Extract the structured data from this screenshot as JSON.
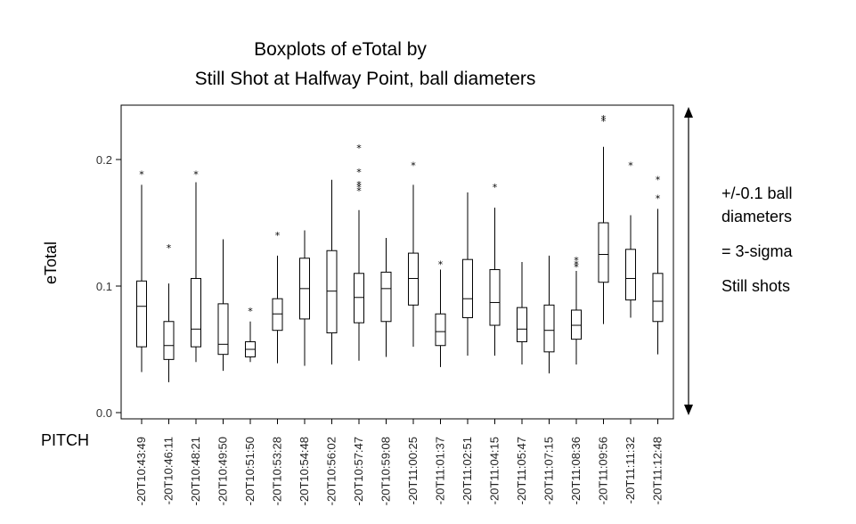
{
  "chart_data": {
    "type": "box",
    "title": "Boxplots of eTotal by",
    "subtitle": "Still Shot at Halfway Point, ball diameters",
    "ylabel": "eTotal",
    "xlabel": "PITCH",
    "ylim": [
      0.0,
      0.24
    ],
    "yticks": [
      {
        "value": 0.0,
        "label": "0.0"
      },
      {
        "value": 0.1,
        "label": "0.1"
      },
      {
        "value": 0.2,
        "label": "0.2"
      }
    ],
    "grid": false,
    "categories": [
      "-20T10:43:49",
      "-20T10:46:11",
      "-20T10:48:21",
      "-20T10:49:50",
      "-20T10:51:50",
      "-20T10:53:28",
      "-20T10:54:48",
      "-20T10:56:02",
      "-20T10:57:47",
      "-20T10:59:08",
      "-20T11:00:25",
      "-20T11:01:37",
      "-20T11:02:51",
      "-20T11:04:15",
      "-20T11:05:47",
      "-20T11:07:15",
      "-20T11:08:36",
      "-20T11:09:56",
      "-20T11:11:32",
      "-20T11:12:48"
    ],
    "boxes": [
      {
        "min": 0.032,
        "q1": 0.052,
        "median": 0.084,
        "q3": 0.104,
        "max": 0.18,
        "outliers": [
          0.189
        ]
      },
      {
        "min": 0.024,
        "q1": 0.042,
        "median": 0.053,
        "q3": 0.072,
        "max": 0.102,
        "outliers": [
          0.131
        ]
      },
      {
        "min": 0.04,
        "q1": 0.052,
        "median": 0.066,
        "q3": 0.106,
        "max": 0.182,
        "outliers": [
          0.189
        ]
      },
      {
        "min": 0.033,
        "q1": 0.046,
        "median": 0.054,
        "q3": 0.086,
        "max": 0.137,
        "outliers": []
      },
      {
        "min": 0.04,
        "q1": 0.044,
        "median": 0.05,
        "q3": 0.056,
        "max": 0.072,
        "outliers": [
          0.081
        ]
      },
      {
        "min": 0.039,
        "q1": 0.065,
        "median": 0.078,
        "q3": 0.09,
        "max": 0.124,
        "outliers": [
          0.141
        ]
      },
      {
        "min": 0.037,
        "q1": 0.074,
        "median": 0.098,
        "q3": 0.122,
        "max": 0.144,
        "outliers": []
      },
      {
        "min": 0.038,
        "q1": 0.063,
        "median": 0.096,
        "q3": 0.128,
        "max": 0.184,
        "outliers": []
      },
      {
        "min": 0.041,
        "q1": 0.071,
        "median": 0.091,
        "q3": 0.11,
        "max": 0.16,
        "outliers": [
          0.176,
          0.179,
          0.181,
          0.191,
          0.21
        ]
      },
      {
        "min": 0.044,
        "q1": 0.072,
        "median": 0.098,
        "q3": 0.111,
        "max": 0.138,
        "outliers": []
      },
      {
        "min": 0.052,
        "q1": 0.085,
        "median": 0.106,
        "q3": 0.126,
        "max": 0.18,
        "outliers": [
          0.196
        ]
      },
      {
        "min": 0.036,
        "q1": 0.053,
        "median": 0.064,
        "q3": 0.078,
        "max": 0.113,
        "outliers": [
          0.118
        ]
      },
      {
        "min": 0.045,
        "q1": 0.075,
        "median": 0.09,
        "q3": 0.121,
        "max": 0.174,
        "outliers": []
      },
      {
        "min": 0.045,
        "q1": 0.069,
        "median": 0.087,
        "q3": 0.113,
        "max": 0.162,
        "outliers": [
          0.179
        ]
      },
      {
        "min": 0.038,
        "q1": 0.056,
        "median": 0.066,
        "q3": 0.083,
        "max": 0.119,
        "outliers": []
      },
      {
        "min": 0.031,
        "q1": 0.048,
        "median": 0.065,
        "q3": 0.085,
        "max": 0.124,
        "outliers": []
      },
      {
        "min": 0.038,
        "q1": 0.058,
        "median": 0.069,
        "q3": 0.081,
        "max": 0.112,
        "outliers": [
          0.116,
          0.118,
          0.121
        ]
      },
      {
        "min": 0.07,
        "q1": 0.103,
        "median": 0.125,
        "q3": 0.15,
        "max": 0.21,
        "outliers": [
          0.231,
          0.233
        ]
      },
      {
        "min": 0.075,
        "q1": 0.089,
        "median": 0.106,
        "q3": 0.129,
        "max": 0.156,
        "outliers": [
          0.196
        ]
      },
      {
        "min": 0.046,
        "q1": 0.072,
        "median": 0.088,
        "q3": 0.11,
        "max": 0.161,
        "outliers": [
          0.17,
          0.185
        ]
      }
    ],
    "annotation": {
      "lines": [
        "+/-0.1 ball",
        "diameters",
        "= 3-sigma",
        "Still shots"
      ],
      "arrow_range": [
        0.0,
        0.24
      ]
    }
  }
}
